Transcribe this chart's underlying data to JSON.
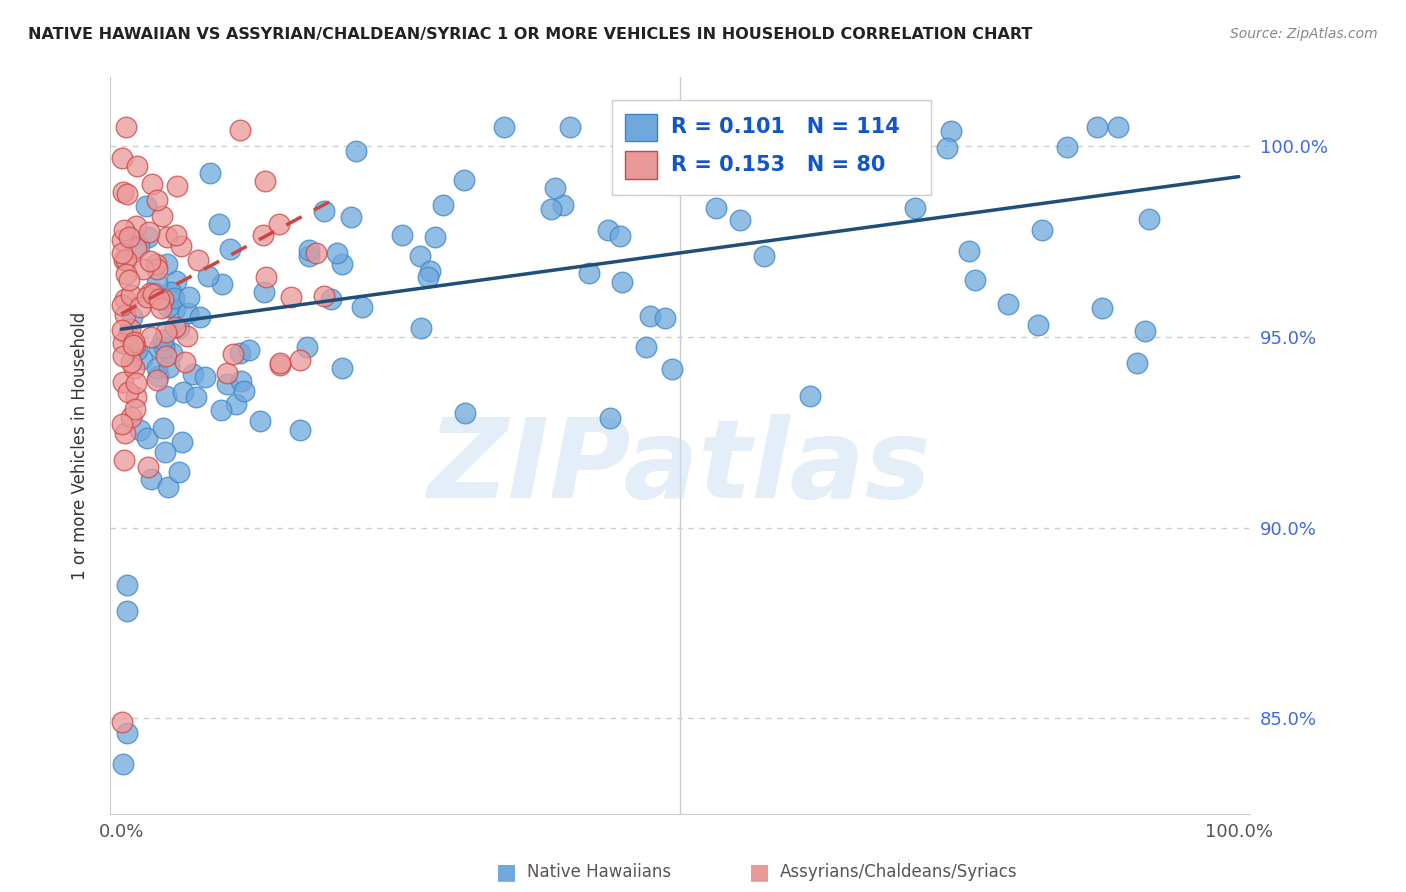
{
  "title": "NATIVE HAWAIIAN VS ASSYRIAN/CHALDEAN/SYRIAC 1 OR MORE VEHICLES IN HOUSEHOLD CORRELATION CHART",
  "source": "Source: ZipAtlas.com",
  "ylabel": "1 or more Vehicles in Household",
  "ytick_values": [
    0.85,
    0.9,
    0.95,
    1.0
  ],
  "xlim": [
    -0.01,
    1.01
  ],
  "ylim": [
    0.825,
    1.018
  ],
  "r_blue": 0.101,
  "n_blue": 114,
  "r_pink": 0.153,
  "n_pink": 80,
  "blue_color": "#6fa8dc",
  "blue_edge": "#3d85c8",
  "pink_color": "#ea9999",
  "pink_edge": "#cc4444",
  "trendline_blue": "#1f4e79",
  "trendline_pink": "#cc4444",
  "legend_label_blue": "Native Hawaiians",
  "legend_label_pink": "Assyrians/Chaldeans/Syriacs",
  "watermark": "ZIPatlas",
  "blue_trendline_x": [
    0.0,
    1.0
  ],
  "blue_trendline_y": [
    0.952,
    0.992
  ],
  "pink_trendline_x": [
    0.0,
    0.19
  ],
  "pink_trendline_y": [
    0.956,
    0.986
  ]
}
